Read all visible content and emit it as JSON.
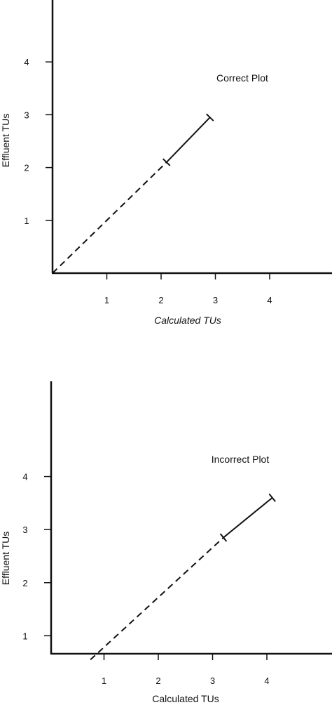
{
  "chart_data": [
    {
      "type": "line",
      "title": "Correct Plot",
      "xlabel": "Calculated TUs",
      "ylabel": "Effluent TUs",
      "x_ticks": [
        1,
        2,
        3,
        4
      ],
      "y_ticks": [
        1,
        2,
        3,
        4
      ],
      "grid": false,
      "series": [
        {
          "style": "dashed",
          "points": [
            [
              0,
              0
            ],
            [
              2.1,
              2.1
            ]
          ]
        },
        {
          "style": "solid",
          "points": [
            [
              2.1,
              2.1
            ],
            [
              2.9,
              2.95
            ]
          ],
          "endpoint_marks": true
        }
      ]
    },
    {
      "type": "line",
      "title": "Incorrect Plot",
      "xlabel": "Calculated TUs",
      "ylabel": "Effluent TUs",
      "x_ticks": [
        1,
        2,
        3,
        4
      ],
      "y_ticks": [
        1,
        2,
        3,
        4
      ],
      "grid": false,
      "series": [
        {
          "style": "dashed",
          "points": [
            [
              0.75,
              0.55
            ],
            [
              3.2,
              2.85
            ]
          ]
        },
        {
          "style": "solid",
          "points": [
            [
              3.2,
              2.85
            ],
            [
              4.1,
              3.6
            ]
          ],
          "endpoint_marks": true
        }
      ]
    }
  ]
}
